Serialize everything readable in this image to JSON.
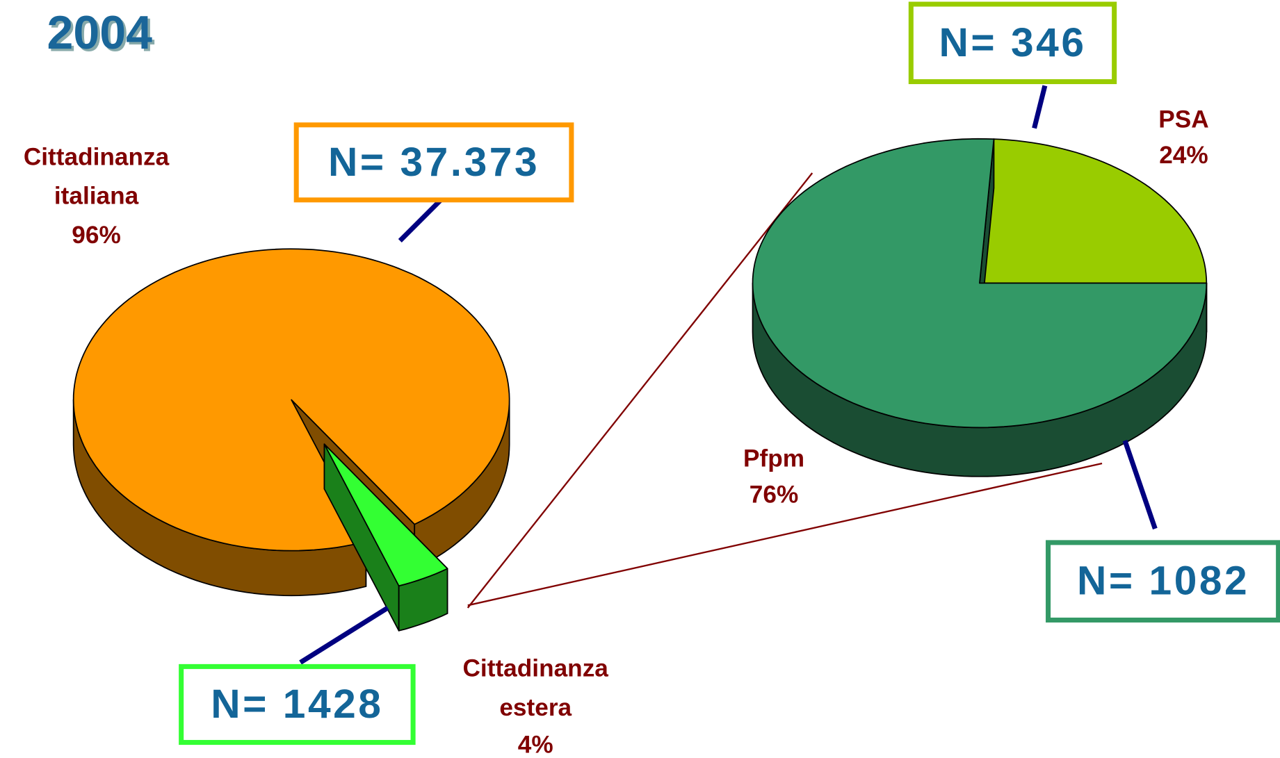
{
  "chart_data": [
    {
      "type": "pie",
      "title": "2004",
      "categories": [
        "Cittadinanza italiana",
        "Cittadinanza estera"
      ],
      "values": [
        96,
        4
      ],
      "value_labels": [
        "96%",
        "4%"
      ],
      "colors": [
        "#ff9900",
        "#33ff33"
      ],
      "annotations": [
        "N= 37.373",
        "N= 1428"
      ]
    },
    {
      "type": "pie",
      "categories": [
        "PSA",
        "Pfpm"
      ],
      "values": [
        24,
        76
      ],
      "value_labels": [
        "24%",
        "76%"
      ],
      "colors": [
        "#99cc00",
        "#339966"
      ],
      "annotations": [
        "N= 346",
        "N= 1082"
      ]
    }
  ]
}
